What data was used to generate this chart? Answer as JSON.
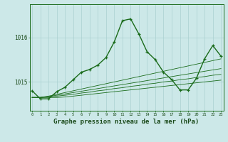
{
  "title": "Graphe pression niveau de la mer (hPa)",
  "x_values": [
    0,
    1,
    2,
    3,
    4,
    5,
    6,
    7,
    8,
    9,
    10,
    11,
    12,
    13,
    14,
    15,
    16,
    17,
    18,
    19,
    20,
    21,
    22,
    23
  ],
  "main_line": [
    1014.8,
    1014.62,
    1014.62,
    1014.78,
    1014.88,
    1015.05,
    1015.22,
    1015.28,
    1015.38,
    1015.55,
    1015.9,
    1016.38,
    1016.42,
    1016.08,
    1015.68,
    1015.5,
    1015.22,
    1015.05,
    1014.82,
    1014.82,
    1015.08,
    1015.52,
    1015.82,
    1015.58
  ],
  "flat_line1": [
    1014.65,
    1014.65,
    1014.65,
    1014.65,
    1014.66,
    1014.68,
    1014.7,
    1014.72,
    1014.74,
    1014.76,
    1014.78,
    1014.8,
    1014.82,
    1014.84,
    1014.86,
    1014.88,
    1014.9,
    1014.92,
    1014.94,
    1014.96,
    1014.98,
    1015.0,
    1015.02,
    1015.04
  ],
  "flat_line2": [
    1014.65,
    1014.65,
    1014.66,
    1014.68,
    1014.7,
    1014.72,
    1014.75,
    1014.77,
    1014.8,
    1014.82,
    1014.85,
    1014.87,
    1014.9,
    1014.92,
    1014.95,
    1014.97,
    1015.0,
    1015.02,
    1015.05,
    1015.07,
    1015.1,
    1015.12,
    1015.15,
    1015.17
  ],
  "flat_line3": [
    1014.65,
    1014.65,
    1014.67,
    1014.7,
    1014.73,
    1014.76,
    1014.79,
    1014.82,
    1014.85,
    1014.88,
    1014.91,
    1014.94,
    1014.97,
    1015.0,
    1015.03,
    1015.06,
    1015.09,
    1015.12,
    1015.15,
    1015.18,
    1015.21,
    1015.24,
    1015.27,
    1015.3
  ],
  "flat_line4": [
    1014.65,
    1014.65,
    1014.68,
    1014.72,
    1014.76,
    1014.8,
    1014.84,
    1014.88,
    1014.92,
    1014.96,
    1015.0,
    1015.04,
    1015.08,
    1015.12,
    1015.16,
    1015.2,
    1015.24,
    1015.28,
    1015.32,
    1015.36,
    1015.4,
    1015.44,
    1015.48,
    1015.52
  ],
  "yticks": [
    1015,
    1016
  ],
  "ylim": [
    1014.35,
    1016.75
  ],
  "xlim": [
    -0.3,
    23.3
  ],
  "line_color": "#1a6b1a",
  "bg_color": "#cce8e8",
  "grid_color": "#aad0d0",
  "text_color": "#1a4a1a",
  "title_fontsize": 6.5
}
